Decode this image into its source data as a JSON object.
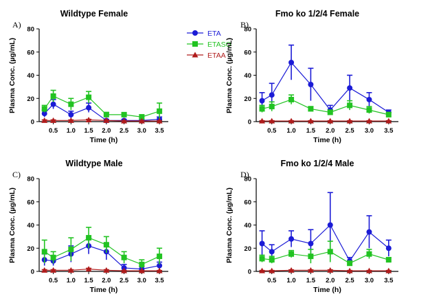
{
  "legend": {
    "entries": [
      {
        "name": "ETA",
        "color": "#1b1bd6",
        "marker": "circle"
      },
      {
        "name": "ETASO",
        "color": "#22c322",
        "marker": "square"
      },
      {
        "name": "ETAA",
        "color": "#b01c1c",
        "marker": "triangle"
      }
    ]
  },
  "chart_data": [
    {
      "type": "line",
      "panel_label": "A)",
      "title": "Wildtype Female",
      "xlabel": "Time (h)",
      "ylabel": "Plasma Conc. (µg/mL)",
      "ylim": [
        0,
        80
      ],
      "yticks": [
        "0",
        "20",
        "40",
        "60",
        "80"
      ],
      "xticks": [
        "0.5",
        "1.0",
        "1.5",
        "2.0",
        "2.5",
        "3.0",
        "3.5"
      ],
      "x": [
        0.25,
        0.5,
        1.0,
        1.5,
        2.0,
        2.5,
        3.0,
        3.5
      ],
      "series": [
        {
          "name": "ETA",
          "values": [
            7,
            15,
            6,
            12,
            1,
            1,
            1,
            2
          ],
          "errors": [
            3,
            4,
            3,
            4,
            1,
            1,
            1,
            2
          ]
        },
        {
          "name": "ETASO",
          "values": [
            11,
            22,
            15,
            21,
            6,
            6,
            4,
            9
          ],
          "errors": [
            3,
            5,
            5,
            5,
            2,
            1,
            2,
            7
          ]
        },
        {
          "name": "ETAA",
          "values": [
            1,
            1,
            1,
            1.5,
            1,
            0.5,
            0.5,
            0.5
          ],
          "errors": [
            0.5,
            0.5,
            0.5,
            0.5,
            0.5,
            0.3,
            0.3,
            0.3
          ]
        }
      ]
    },
    {
      "type": "line",
      "panel_label": "B)",
      "title": "Fmo ko 1/2/4 Female",
      "xlabel": "Time (h)",
      "ylabel": "Plasma Conc. (µg/mL)",
      "ylim": [
        0,
        80
      ],
      "yticks": [
        "0",
        "20",
        "40",
        "60",
        "80"
      ],
      "xticks": [
        "0.5",
        "1.0",
        "1.5",
        "2.0",
        "2.5",
        "3.0",
        "3.5"
      ],
      "x": [
        0.25,
        0.5,
        1.0,
        1.5,
        2.0,
        2.5,
        3.0,
        3.5
      ],
      "series": [
        {
          "name": "ETA",
          "values": [
            18,
            23,
            51,
            32,
            10,
            29,
            19,
            8
          ],
          "errors": [
            7,
            10,
            15,
            14,
            4,
            11,
            6,
            2
          ]
        },
        {
          "name": "ETASO",
          "values": [
            11,
            13,
            19,
            11,
            8,
            14,
            10,
            6
          ],
          "errors": [
            3,
            4,
            4,
            2,
            2,
            4,
            3,
            2
          ]
        },
        {
          "name": "ETAA",
          "values": [
            0.5,
            0.5,
            0.5,
            0.5,
            0.5,
            0.5,
            0.5,
            0.5
          ],
          "errors": [
            0.3,
            0.3,
            0.3,
            0.3,
            0.3,
            0.3,
            0.3,
            0.3
          ]
        }
      ]
    },
    {
      "type": "line",
      "panel_label": "C)",
      "title": "Wildtype Male",
      "xlabel": "Time (h)",
      "ylabel": "Plasma Conc. (µg/mL)",
      "ylim": [
        0,
        80
      ],
      "yticks": [
        "0",
        "20",
        "40",
        "60",
        "80"
      ],
      "xticks": [
        "0.5",
        "1.0",
        "1.5",
        "2.0",
        "2.5",
        "3.0",
        "3.5"
      ],
      "x": [
        0.25,
        0.5,
        1.0,
        1.5,
        2.0,
        2.5,
        3.0,
        3.5
      ],
      "series": [
        {
          "name": "ETA",
          "values": [
            10,
            9,
            15,
            22,
            17,
            3,
            2,
            5
          ],
          "errors": [
            5,
            4,
            7,
            7,
            7,
            3,
            2,
            3
          ]
        },
        {
          "name": "ETASO",
          "values": [
            17,
            12,
            19,
            29,
            23,
            12,
            6,
            13
          ],
          "errors": [
            10,
            5,
            10,
            9,
            7,
            5,
            4,
            7
          ]
        },
        {
          "name": "ETAA",
          "values": [
            1,
            1,
            1,
            2,
            1,
            0.5,
            0.5,
            0.5
          ],
          "errors": [
            0.5,
            0.5,
            0.5,
            0.7,
            0.5,
            0.3,
            0.3,
            0.3
          ]
        }
      ]
    },
    {
      "type": "line",
      "panel_label": "D)",
      "title": "Fmo ko 1/2/4 Male",
      "xlabel": "Time (h)",
      "ylabel": "Plasma Conc. (µg/mL)",
      "ylim": [
        0,
        80
      ],
      "yticks": [
        "0",
        "20",
        "40",
        "60",
        "80"
      ],
      "xticks": [
        "0.5",
        "1.0",
        "1.5",
        "2.0",
        "2.5",
        "3.0",
        "3.5"
      ],
      "x": [
        0.25,
        0.5,
        1.0,
        1.5,
        2.0,
        2.5,
        3.0,
        3.5
      ],
      "series": [
        {
          "name": "ETA",
          "values": [
            24,
            17,
            28,
            24,
            40,
            9,
            34,
            20
          ],
          "errors": [
            11,
            6,
            7,
            12,
            28,
            3,
            14,
            7
          ]
        },
        {
          "name": "ETASO",
          "values": [
            11,
            10,
            15,
            13,
            17,
            7,
            15,
            10
          ],
          "errors": [
            3,
            3,
            3,
            6,
            9,
            2,
            4,
            2
          ]
        },
        {
          "name": "ETAA",
          "values": [
            0.5,
            0.5,
            1,
            1,
            1,
            0.5,
            0.5,
            0.5
          ],
          "errors": [
            0.3,
            0.3,
            0.4,
            0.4,
            0.4,
            0.3,
            0.3,
            0.3
          ]
        }
      ]
    }
  ]
}
